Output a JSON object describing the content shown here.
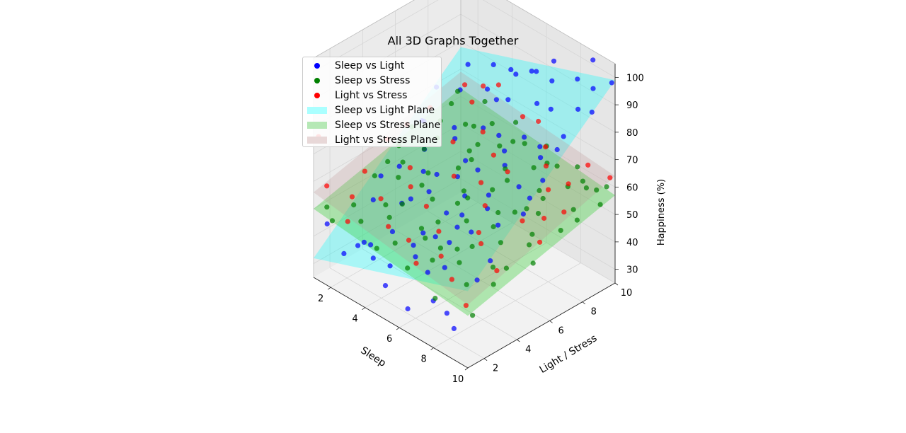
{
  "chart_data": {
    "type": "scatter3d",
    "title": "All 3D Graphs Together",
    "xlabel": "Sleep",
    "ylabel": "Light / Stress",
    "zlabel": "Happiness (%)",
    "xlim": [
      1,
      10
    ],
    "ylim": [
      1,
      10
    ],
    "zlim": [
      25,
      105
    ],
    "xticks": [
      2,
      4,
      6,
      8,
      10
    ],
    "yticks": [
      2,
      4,
      6,
      8,
      10
    ],
    "zticks": [
      30,
      40,
      50,
      60,
      70,
      80,
      90,
      100
    ],
    "grid": true,
    "legend_position": "top-left",
    "series": [
      {
        "name": "Sleep vs Light",
        "color": "#0000ff",
        "points": [
          [
            1.6,
            1.2,
            46
          ],
          [
            2.2,
            1.6,
            36
          ],
          [
            3.3,
            1.3,
            44
          ],
          [
            4.1,
            1.4,
            42
          ],
          [
            5.0,
            1.2,
            36
          ],
          [
            6.4,
            1.1,
            33
          ],
          [
            7.7,
            1.3,
            40
          ],
          [
            2.8,
            2.6,
            38
          ],
          [
            4.7,
            1.8,
            40
          ],
          [
            5.8,
            2.2,
            46
          ],
          [
            6.8,
            1.9,
            45
          ],
          [
            8.3,
            1.5,
            37
          ],
          [
            9.0,
            1.2,
            35
          ],
          [
            9.3,
            2.3,
            50
          ],
          [
            3.6,
            3.1,
            44
          ],
          [
            2.0,
            3.6,
            48
          ],
          [
            1.3,
            4.8,
            50
          ],
          [
            5.1,
            3.4,
            48
          ],
          [
            6.2,
            3.0,
            52
          ],
          [
            7.3,
            2.7,
            55
          ],
          [
            8.1,
            3.2,
            60
          ],
          [
            9.4,
            3.0,
            55
          ],
          [
            1.9,
            5.3,
            54
          ],
          [
            3.0,
            4.3,
            48
          ],
          [
            4.3,
            4.6,
            56
          ],
          [
            5.6,
            4.3,
            54
          ],
          [
            6.7,
            4.1,
            58
          ],
          [
            7.8,
            4.5,
            63
          ],
          [
            8.8,
            4.1,
            62
          ],
          [
            9.8,
            4.6,
            68
          ],
          [
            2.6,
            6.1,
            60
          ],
          [
            3.8,
            5.6,
            57
          ],
          [
            4.9,
            6.2,
            64
          ],
          [
            6.0,
            5.8,
            66
          ],
          [
            7.1,
            6.3,
            70
          ],
          [
            8.3,
            5.9,
            68
          ],
          [
            9.5,
            6.1,
            74
          ],
          [
            1.5,
            7.1,
            63
          ],
          [
            3.2,
            7.3,
            66
          ],
          [
            4.6,
            7.6,
            70
          ],
          [
            5.7,
            7.4,
            72
          ],
          [
            6.8,
            7.8,
            74
          ],
          [
            8.0,
            7.5,
            76
          ],
          [
            9.0,
            7.9,
            82
          ],
          [
            2.3,
            8.6,
            72
          ],
          [
            3.6,
            8.9,
            76
          ],
          [
            5.0,
            8.7,
            78
          ],
          [
            6.3,
            9.1,
            80
          ],
          [
            7.4,
            8.8,
            83
          ],
          [
            8.6,
            9.2,
            86
          ],
          [
            9.7,
            8.9,
            90
          ],
          [
            1.8,
            9.6,
            76
          ],
          [
            3.1,
            9.8,
            80
          ],
          [
            4.4,
            9.5,
            84
          ],
          [
            5.5,
            9.9,
            86
          ],
          [
            6.7,
            9.6,
            88
          ],
          [
            7.9,
            9.9,
            92
          ],
          [
            9.1,
            9.6,
            94
          ],
          [
            9.9,
            9.9,
            98
          ],
          [
            4.0,
            3.8,
            55
          ],
          [
            6.5,
            6.9,
            71
          ],
          [
            3.4,
            5.2,
            58
          ],
          [
            8.7,
            6.8,
            77
          ],
          [
            5.3,
            2.6,
            47
          ],
          [
            7.0,
            9.4,
            97
          ],
          [
            2.0,
            6.7,
            66
          ],
          [
            9.6,
            5.2,
            71
          ],
          [
            4.8,
            8.2,
            79
          ],
          [
            6.1,
            4.9,
            60
          ],
          [
            7.6,
            2.1,
            49
          ],
          [
            3.9,
            6.6,
            67
          ],
          [
            5.9,
            9.2,
            90
          ],
          [
            1.2,
            8.3,
            70
          ],
          [
            8.9,
            9.8,
            103
          ],
          [
            2.9,
            2.1,
            41
          ],
          [
            5.2,
            5.4,
            62
          ],
          [
            7.3,
            5.1,
            64
          ],
          [
            9.2,
            7.3,
            80
          ],
          [
            4.5,
            9.7,
            82
          ],
          [
            6.9,
            3.6,
            56
          ]
        ]
      },
      {
        "name": "Sleep vs Stress",
        "color": "#008000",
        "points": [
          [
            1.3,
            1.5,
            50
          ],
          [
            2.1,
            2.3,
            51
          ],
          [
            3.0,
            1.8,
            50
          ],
          [
            3.9,
            2.6,
            52
          ],
          [
            4.8,
            2.0,
            48
          ],
          [
            5.7,
            2.9,
            50
          ],
          [
            6.6,
            2.4,
            47
          ],
          [
            7.5,
            3.1,
            47
          ],
          [
            8.4,
            2.6,
            44
          ],
          [
            9.3,
            3.3,
            45
          ],
          [
            1.8,
            3.9,
            55
          ],
          [
            2.7,
            4.4,
            56
          ],
          [
            3.6,
            3.7,
            52
          ],
          [
            4.5,
            4.6,
            54
          ],
          [
            5.4,
            4.0,
            51
          ],
          [
            6.3,
            4.8,
            52
          ],
          [
            7.2,
            4.2,
            48
          ],
          [
            8.1,
            5.0,
            50
          ],
          [
            9.0,
            4.4,
            46
          ],
          [
            9.8,
            5.2,
            48
          ],
          [
            1.4,
            5.8,
            58
          ],
          [
            2.3,
            6.4,
            58
          ],
          [
            3.2,
            5.7,
            55
          ],
          [
            4.1,
            6.6,
            57
          ],
          [
            5.0,
            6.0,
            54
          ],
          [
            5.9,
            6.8,
            55
          ],
          [
            6.8,
            6.2,
            52
          ],
          [
            7.7,
            7.0,
            54
          ],
          [
            8.6,
            6.4,
            50
          ],
          [
            9.5,
            7.2,
            52
          ],
          [
            1.9,
            7.8,
            62
          ],
          [
            2.8,
            8.4,
            62
          ],
          [
            3.7,
            7.7,
            58
          ],
          [
            4.6,
            8.6,
            60
          ],
          [
            5.5,
            8.0,
            57
          ],
          [
            6.4,
            8.8,
            58
          ],
          [
            7.3,
            8.2,
            55
          ],
          [
            8.2,
            9.0,
            57
          ],
          [
            9.1,
            8.4,
            54
          ],
          [
            9.9,
            9.2,
            56
          ],
          [
            1.2,
            9.6,
            64
          ],
          [
            2.5,
            9.9,
            64
          ],
          [
            3.4,
            9.4,
            61
          ],
          [
            4.3,
            9.9,
            63
          ],
          [
            5.2,
            9.5,
            60
          ],
          [
            6.1,
            9.9,
            61
          ],
          [
            7.0,
            9.6,
            58
          ],
          [
            7.9,
            9.9,
            60
          ],
          [
            8.8,
            9.5,
            57
          ],
          [
            9.6,
            9.9,
            59
          ],
          [
            2.0,
            1.1,
            49
          ],
          [
            4.4,
            1.3,
            47
          ],
          [
            6.0,
            1.5,
            45
          ],
          [
            7.9,
            1.2,
            42
          ],
          [
            9.7,
            1.6,
            41
          ],
          [
            3.3,
            3.0,
            53
          ],
          [
            5.1,
            3.3,
            50
          ],
          [
            6.9,
            3.6,
            48
          ],
          [
            8.7,
            3.9,
            47
          ],
          [
            1.6,
            4.9,
            56
          ],
          [
            3.5,
            5.0,
            54
          ],
          [
            5.3,
            5.3,
            53
          ],
          [
            7.1,
            5.6,
            50
          ],
          [
            8.9,
            5.9,
            49
          ],
          [
            2.4,
            7.1,
            60
          ],
          [
            4.2,
            7.3,
            58
          ],
          [
            6.0,
            7.6,
            56
          ],
          [
            7.8,
            7.9,
            55
          ],
          [
            9.6,
            8.1,
            53
          ],
          [
            1.5,
            8.9,
            63
          ],
          [
            3.0,
            8.7,
            61
          ],
          [
            4.9,
            9.1,
            61
          ],
          [
            6.7,
            9.3,
            59
          ],
          [
            8.5,
            9.6,
            58
          ],
          [
            2.2,
            5.2,
            57
          ],
          [
            5.6,
            5.6,
            55
          ],
          [
            7.4,
            6.6,
            53
          ],
          [
            3.9,
            8.0,
            60
          ],
          [
            6.5,
            3.0,
            49
          ],
          [
            8.0,
            7.4,
            52
          ],
          [
            1.1,
            6.9,
            60
          ],
          [
            9.2,
            9.7,
            57
          ]
        ]
      },
      {
        "name": "Light vs Stress",
        "color": "#ff0000",
        "points": [
          [
            1.2,
            1.6,
            57
          ],
          [
            1.7,
            3.4,
            58
          ],
          [
            1.3,
            5.2,
            62
          ],
          [
            1.5,
            7.6,
            66
          ],
          [
            1.9,
            9.3,
            70
          ],
          [
            2.9,
            1.1,
            52
          ],
          [
            3.4,
            2.6,
            57
          ],
          [
            3.1,
            4.7,
            60
          ],
          [
            3.6,
            6.8,
            64
          ],
          [
            2.7,
            8.9,
            68
          ],
          [
            4.6,
            1.8,
            54
          ],
          [
            5.1,
            3.6,
            57
          ],
          [
            4.8,
            5.6,
            60
          ],
          [
            5.3,
            7.5,
            63
          ],
          [
            4.9,
            9.7,
            68
          ],
          [
            6.7,
            1.3,
            50
          ],
          [
            6.3,
            3.1,
            54
          ],
          [
            6.9,
            5.3,
            58
          ],
          [
            6.4,
            7.2,
            62
          ],
          [
            6.8,
            9.1,
            66
          ],
          [
            8.4,
            1.7,
            49
          ],
          [
            8.0,
            3.9,
            53
          ],
          [
            8.6,
            5.8,
            57
          ],
          [
            8.2,
            7.8,
            60
          ],
          [
            8.8,
            9.6,
            65
          ],
          [
            9.7,
            1.2,
            46
          ],
          [
            9.4,
            3.4,
            50
          ],
          [
            9.9,
            5.5,
            55
          ],
          [
            9.5,
            7.4,
            58
          ],
          [
            9.8,
            9.9,
            63
          ],
          [
            2.2,
            2.1,
            55
          ],
          [
            5.9,
            6.1,
            60
          ],
          [
            7.5,
            8.4,
            64
          ],
          [
            4.1,
            8.1,
            65
          ],
          [
            7.2,
            2.3,
            51
          ],
          [
            3.8,
            4.0,
            58
          ],
          [
            5.6,
            2.0,
            52
          ],
          [
            1.4,
            6.3,
            64
          ],
          [
            9.1,
            6.6,
            57
          ],
          [
            2.5,
            9.8,
            70
          ],
          [
            6.0,
            9.5,
            71
          ],
          [
            8.9,
            8.3,
            63
          ],
          [
            1.1,
            1.2,
            76
          ],
          [
            9.3,
            2.4,
            67
          ],
          [
            3.3,
            9.9,
            73
          ]
        ]
      }
    ],
    "planes": [
      {
        "name": "Sleep vs Light Plane",
        "color": "#00ffff",
        "opacity": 0.3,
        "corners_z": {
          "x_min_y_min": 32,
          "x_max_y_min": 53,
          "x_min_y_max": 78,
          "x_max_y_max": 99
        }
      },
      {
        "name": "Sleep vs Stress Plane",
        "color": "#32cd32",
        "opacity": 0.35,
        "corners_z": {
          "x_min_y_min": 50,
          "x_max_y_min": 44,
          "x_min_y_max": 63,
          "x_max_y_max": 57
        }
      },
      {
        "name": "Light vs Stress Plane",
        "color": "#bc8f8f",
        "opacity": 0.25,
        "corners_z": {
          "x_min_y_min": 56,
          "x_max_y_min": 48,
          "x_min_y_max": 69,
          "x_max_y_max": 64
        }
      }
    ]
  },
  "legend": {
    "items": [
      {
        "label": "Sleep vs Light",
        "kind": "dot",
        "color": "#0000ff"
      },
      {
        "label": "Sleep vs Stress",
        "kind": "dot",
        "color": "#008000"
      },
      {
        "label": "Light vs Stress",
        "kind": "dot",
        "color": "#ff0000"
      },
      {
        "label": "Sleep vs Light Plane",
        "kind": "patch",
        "color": "#aaffff"
      },
      {
        "label": "Sleep vs Stress Plane",
        "kind": "patch",
        "color": "#b5e8b5"
      },
      {
        "label": "Light vs Stress Plane",
        "kind": "patch",
        "color": "#e8d8d8"
      }
    ]
  }
}
